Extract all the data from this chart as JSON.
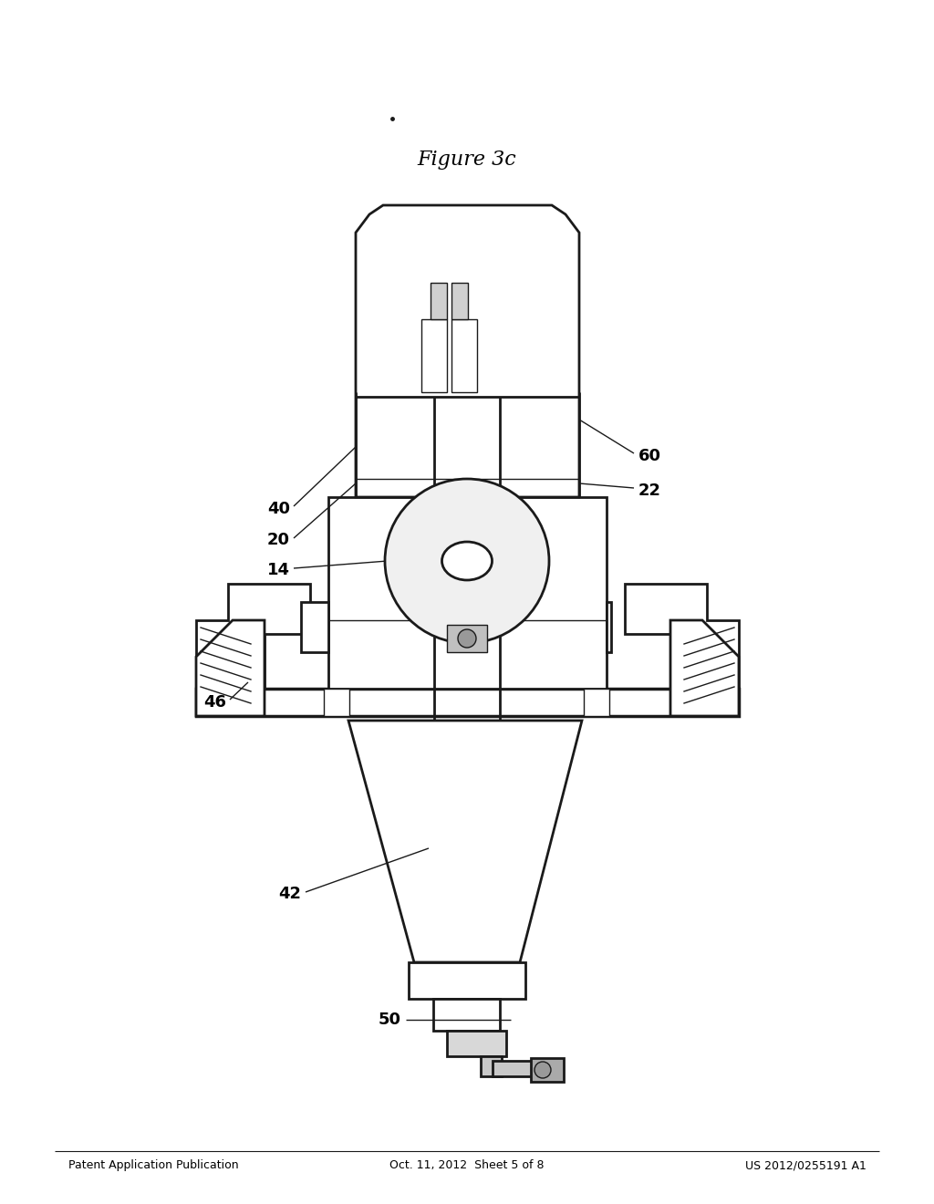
{
  "background_color": "#ffffff",
  "header_left": "Patent Application Publication",
  "header_mid": "Oct. 11, 2012  Sheet 5 of 8",
  "header_right": "US 2012/0255191 A1",
  "figure_label": "Figure 3c",
  "line_color": "#1a1a1a",
  "text_color": "#000000",
  "lw_main": 2.0,
  "lw_thin": 1.0,
  "lw_thick": 2.5
}
